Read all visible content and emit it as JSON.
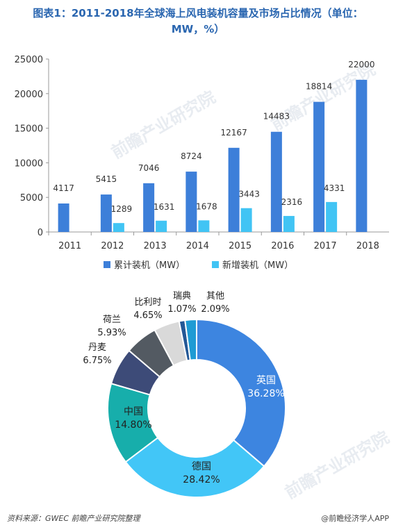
{
  "title_line1": "图表1：2011-2018年全球海上风电装机容量及市场占比情况（单位：",
  "title_line2": "MW，%）",
  "watermark": "前瞻产业研究院",
  "footer_source": "资料来源：GWEC  前瞻产业研究院整理",
  "footer_brand": "@前瞻经济学人APP",
  "chart_data": [
    {
      "type": "bar",
      "categories": [
        "2011",
        "2012",
        "2013",
        "2014",
        "2015",
        "2016",
        "2017",
        "2018"
      ],
      "series": [
        {
          "name": "累计装机（MW）",
          "color": "#3d7fd9",
          "values": [
            4117,
            5415,
            7046,
            8724,
            12167,
            14483,
            18814,
            22000
          ]
        },
        {
          "name": "新增装机（MW）",
          "color": "#41c4f4",
          "values": [
            null,
            1289,
            1631,
            1678,
            3443,
            2316,
            4331,
            null
          ]
        }
      ],
      "yticks": [
        "0",
        "5000",
        "10000",
        "15000",
        "20000",
        "25000"
      ],
      "ylim": [
        0,
        25000
      ],
      "grid": false,
      "legend": "bottom"
    },
    {
      "type": "pie",
      "donut": true,
      "slices": [
        {
          "label": "英国",
          "value": 36.28,
          "text": "36.28%",
          "color": "#3d85e0"
        },
        {
          "label": "德国",
          "value": 28.42,
          "text": "28.42%",
          "color": "#42c6f7"
        },
        {
          "label": "中国",
          "value": 14.8,
          "text": "14.80%",
          "color": "#17aeab"
        },
        {
          "label": "丹麦",
          "value": 6.75,
          "text": "6.75%",
          "color": "#3d4b78"
        },
        {
          "label": "荷兰",
          "value": 5.93,
          "text": "5.93%",
          "color": "#535a62"
        },
        {
          "label": "比利时",
          "value": 4.65,
          "text": "4.65%",
          "color": "#d9d9d9"
        },
        {
          "label": "瑞典",
          "value": 1.07,
          "text": "1.07%",
          "color": "#245896"
        },
        {
          "label": "其他",
          "value": 2.09,
          "text": "2.09%",
          "color": "#1f9bd4"
        }
      ]
    }
  ]
}
